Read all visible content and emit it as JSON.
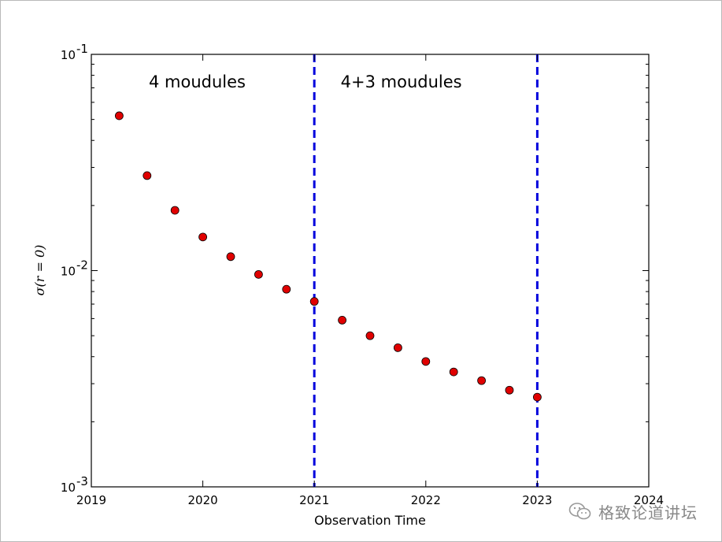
{
  "chart_data": {
    "type": "scatter",
    "title": "",
    "xlabel": "Observation Time",
    "ylabel": "σ(r = 0)",
    "xlim": [
      2019,
      2024
    ],
    "ylim": [
      0.001,
      0.1
    ],
    "yscale": "log",
    "xticks": [
      "2019",
      "2020",
      "2021",
      "2022",
      "2023",
      "2024"
    ],
    "yticks": [
      {
        "value": 0.1,
        "base": "10",
        "exp": "-1"
      },
      {
        "value": 0.01,
        "base": "10",
        "exp": "-2"
      },
      {
        "value": 0.001,
        "base": "10",
        "exp": "-3"
      }
    ],
    "grid": false,
    "marker_color": "#e00000",
    "series": [
      {
        "x": [
          2019.25,
          2019.5,
          2019.75,
          2020.0,
          2020.25,
          2020.5,
          2020.75,
          2021.0,
          2021.25,
          2021.5,
          2021.75,
          2022.0,
          2022.25,
          2022.5,
          2022.75,
          2023.0
        ],
        "y": [
          0.052,
          0.0275,
          0.019,
          0.0143,
          0.0116,
          0.0096,
          0.0082,
          0.0072,
          0.0059,
          0.005,
          0.0044,
          0.0038,
          0.0034,
          0.0031,
          0.0028,
          0.0026
        ]
      }
    ],
    "vlines": [
      {
        "x": 2021,
        "color": "#0000dd",
        "style": "dashed"
      },
      {
        "x": 2023,
        "color": "#0000dd",
        "style": "dashed"
      }
    ],
    "annotations": [
      {
        "text": "4 moudules",
        "x": 2019.95
      },
      {
        "text": "4+3 moudules",
        "x": 2021.78
      }
    ]
  },
  "watermark": {
    "text": "格致论道讲坛",
    "icon": "wechat-icon"
  }
}
